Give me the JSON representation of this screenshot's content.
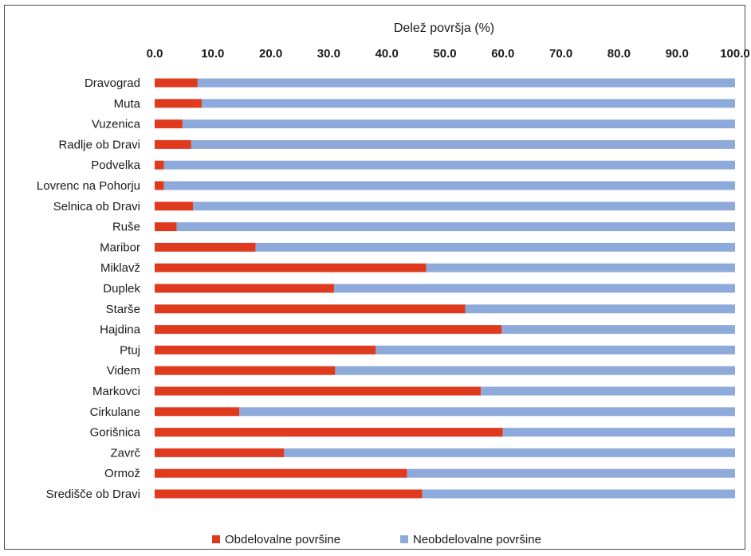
{
  "chart_data": {
    "type": "bar",
    "orientation": "horizontal",
    "stacked": true,
    "title": "Delež površja (%)",
    "xlabel": "Delež površja (%)",
    "ylabel": "",
    "xlim": [
      0,
      100
    ],
    "x_ticks": [
      "0.0",
      "10.0",
      "20.0",
      "30.0",
      "40.0",
      "50.0",
      "60.0",
      "70.0",
      "80.0",
      "90.0",
      "100.0"
    ],
    "x_axis_position": "top",
    "grid": false,
    "legend_position": "bottom",
    "categories": [
      "Dravograd",
      "Muta",
      "Vuzenica",
      "Radlje ob Dravi",
      "Podvelka",
      "Lovrenc na Pohorju",
      "Selnica ob Dravi",
      "Ruše",
      "Maribor",
      "Miklavž",
      "Duplek",
      "Starše",
      "Hajdina",
      "Ptuj",
      "Videm",
      "Markovci",
      "Cirkulane",
      "Gorišnica",
      "Zavrč",
      "Ormož",
      "Središče ob Dravi"
    ],
    "series": [
      {
        "name": "Obdelovalne površine",
        "color": "#e03a1e",
        "values": [
          7.4,
          8.1,
          4.8,
          6.3,
          1.6,
          1.6,
          6.6,
          3.8,
          17.4,
          46.8,
          30.9,
          53.5,
          59.8,
          38.1,
          31.1,
          56.2,
          14.6,
          60.0,
          22.3,
          43.5,
          46.1
        ]
      },
      {
        "name": "Neobdelovalne površine",
        "color": "#8eaadb",
        "values": [
          92.6,
          91.9,
          95.2,
          93.7,
          98.4,
          98.4,
          93.4,
          96.2,
          82.6,
          53.2,
          69.1,
          46.5,
          40.2,
          61.9,
          68.9,
          43.8,
          85.4,
          40.0,
          77.7,
          56.5,
          53.9
        ]
      }
    ]
  }
}
